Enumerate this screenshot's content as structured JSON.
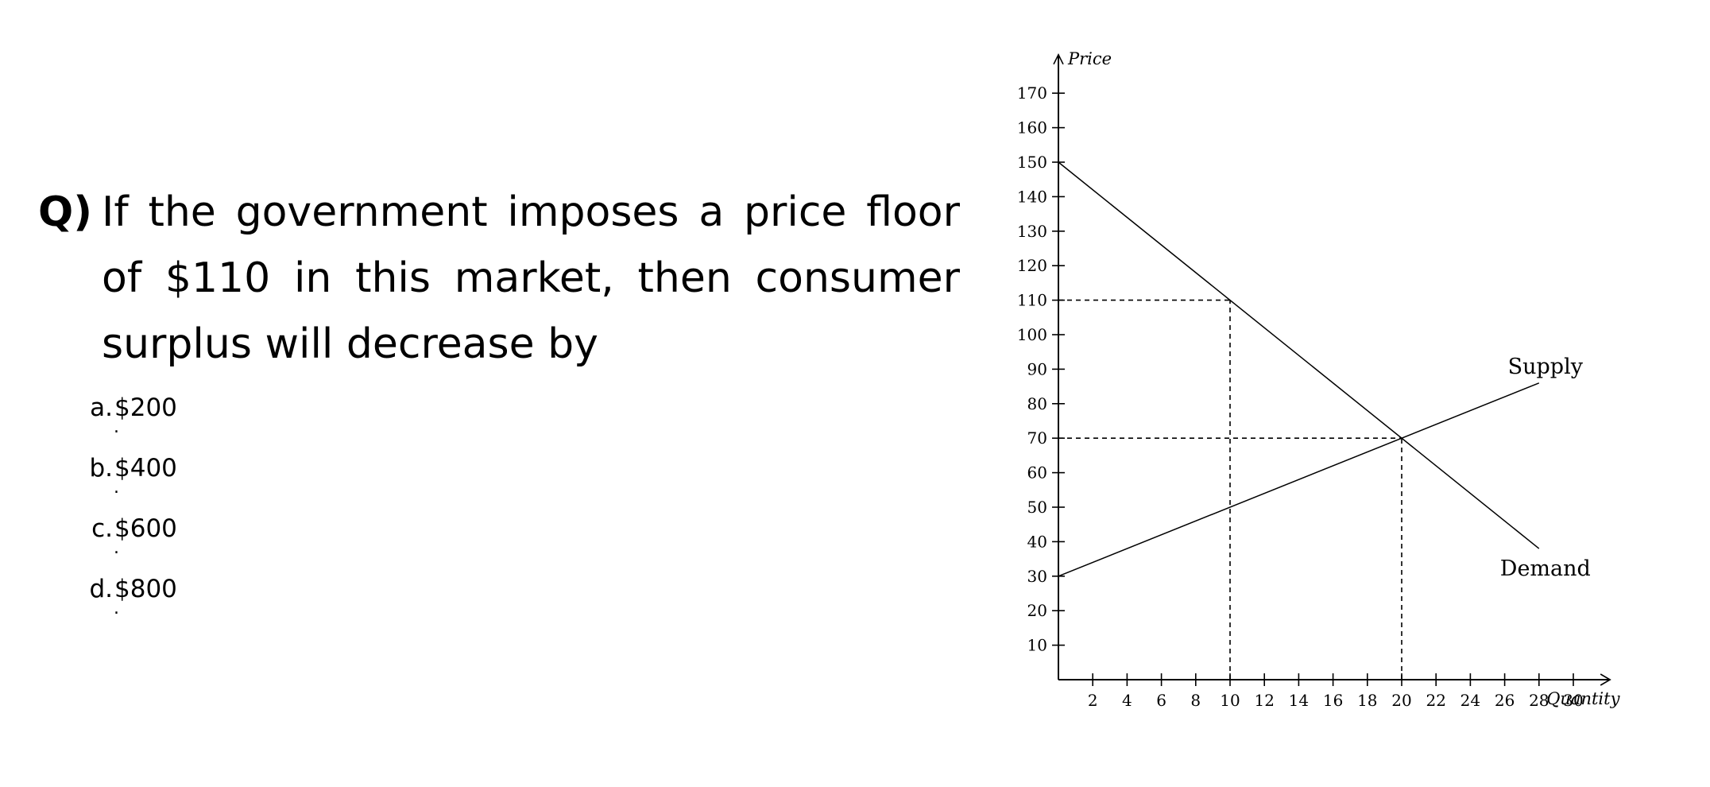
{
  "question": {
    "marker": "Q)",
    "text": "If the government imposes a price floor of $110 in this market, then consumer surplus will decrease by"
  },
  "choices": [
    {
      "letter": "a.",
      "text": "$200"
    },
    {
      "letter": "b.",
      "text": "$400"
    },
    {
      "letter": "c.",
      "text": "$600"
    },
    {
      "letter": "d.",
      "text": "$800"
    }
  ],
  "chart_data": {
    "type": "line",
    "xlabel": "Quantity",
    "ylabel": "Price",
    "xlim": [
      0,
      32
    ],
    "ylim": [
      0,
      180
    ],
    "xticks": [
      2,
      4,
      6,
      8,
      10,
      12,
      14,
      16,
      18,
      20,
      22,
      24,
      26,
      28,
      30
    ],
    "yticks": [
      10,
      20,
      30,
      40,
      50,
      60,
      70,
      80,
      90,
      100,
      110,
      120,
      130,
      140,
      150,
      160,
      170
    ],
    "grid": false,
    "series": [
      {
        "name": "Supply",
        "x": [
          0,
          28
        ],
        "y": [
          30,
          86
        ]
      },
      {
        "name": "Demand",
        "x": [
          0,
          28
        ],
        "y": [
          150,
          38
        ]
      }
    ],
    "reference_lines": [
      {
        "from": [
          0,
          110
        ],
        "to": [
          10,
          110
        ]
      },
      {
        "from": [
          10,
          0
        ],
        "to": [
          10,
          110
        ]
      },
      {
        "from": [
          0,
          70
        ],
        "to": [
          20,
          70
        ]
      },
      {
        "from": [
          20,
          0
        ],
        "to": [
          20,
          70
        ]
      }
    ]
  }
}
